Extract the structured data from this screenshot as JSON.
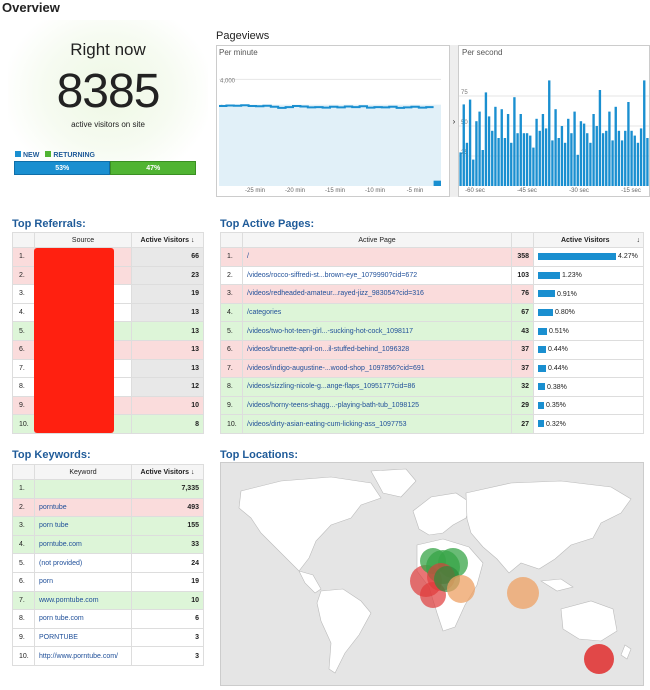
{
  "header": {
    "title": "Overview"
  },
  "right_now": {
    "title": "Right now",
    "count": "8385",
    "subtitle": "active visitors on site",
    "legend_new": "NEW",
    "legend_returning": "RETURNING",
    "new_pct": "53%",
    "returning_pct": "47%",
    "new_fraction": 0.53,
    "colors": {
      "new": "#1a8fd0",
      "returning": "#50b432"
    }
  },
  "pageviews": {
    "title": "Pageviews",
    "per_minute_label": "Per minute",
    "per_second_label": "Per second",
    "minute_y_ticks": [
      "4,000",
      "3,000",
      "2,000",
      "1,000"
    ],
    "minute_x_ticks": [
      "-25 min",
      "-20 min",
      "-15 min",
      "-10 min",
      "-5 min"
    ],
    "second_y_ticks": [
      "75",
      "50",
      "25"
    ],
    "second_x_ticks": [
      "-60 sec",
      "-45 sec",
      "-30 sec",
      "-15 sec"
    ],
    "collapse_icon": "chevron-right-icon",
    "minute_values": [
      3000,
      3020,
      3010,
      3030,
      3000,
      2990,
      3010,
      2970,
      2930,
      2960,
      3000,
      2980,
      2950,
      2960,
      2940,
      2970,
      2950,
      2980,
      2960,
      2990,
      2940,
      2960,
      2950,
      2970,
      2930,
      2950,
      2970,
      2940,
      2960,
      200
    ],
    "second_values": [
      28,
      68,
      36,
      72,
      22,
      54,
      62,
      30,
      78,
      58,
      46,
      66,
      40,
      64,
      40,
      60,
      36,
      74,
      44,
      60,
      44,
      44,
      42,
      32,
      56,
      46,
      60,
      48,
      88,
      38,
      64,
      40,
      50,
      36,
      56,
      44,
      62,
      26,
      54,
      52,
      44,
      36,
      60,
      50,
      80,
      44,
      46,
      62,
      38,
      66,
      46,
      38,
      46,
      70,
      46,
      42,
      36,
      48,
      88,
      40
    ]
  },
  "referrals": {
    "title": "Top Referrals:",
    "col_source": "Source",
    "col_visitors": "Active Visitors",
    "rows": [
      {
        "idx": "1.",
        "value": "66",
        "style": "r"
      },
      {
        "idx": "2.",
        "value": "23",
        "style": "r"
      },
      {
        "idx": "3.",
        "value": "19",
        "style": "w"
      },
      {
        "idx": "4.",
        "value": "13",
        "style": "w"
      },
      {
        "idx": "5.",
        "value": "13",
        "style": "g"
      },
      {
        "idx": "6.",
        "value": "13",
        "style": "r"
      },
      {
        "idx": "7.",
        "value": "13",
        "style": "w"
      },
      {
        "idx": "8.",
        "value": "12",
        "style": "w"
      },
      {
        "idx": "9.",
        "value": "10",
        "style": "r"
      },
      {
        "idx": "10.",
        "value": "8",
        "style": "g"
      }
    ]
  },
  "pages": {
    "title": "Top Active Pages:",
    "col_page": "Active Page",
    "col_visitors": "Active Visitors",
    "rows": [
      {
        "idx": "1.",
        "page": "/",
        "value": "358",
        "pct": "4.27%",
        "share": 4.27,
        "style": "r"
      },
      {
        "idx": "2.",
        "page": "/videos/rocco-siffredi-st...brown-eye_1079990?cid=672",
        "value": "103",
        "pct": "1.23%",
        "share": 1.23,
        "style": "w"
      },
      {
        "idx": "3.",
        "page": "/videos/redheaded-amateur...rayed-jizz_983054?cid=316",
        "value": "76",
        "pct": "0.91%",
        "share": 0.91,
        "style": "r"
      },
      {
        "idx": "4.",
        "page": "/categories",
        "value": "67",
        "pct": "0.80%",
        "share": 0.8,
        "style": "g"
      },
      {
        "idx": "5.",
        "page": "/videos/two-hot-teen-girl...-sucking-hot-cock_1098117",
        "value": "43",
        "pct": "0.51%",
        "share": 0.51,
        "style": "g"
      },
      {
        "idx": "6.",
        "page": "/videos/brunette-april-on...il-stuffed-behind_1096328",
        "value": "37",
        "pct": "0.44%",
        "share": 0.44,
        "style": "r"
      },
      {
        "idx": "7.",
        "page": "/videos/indigo-augustine-...wood-shop_1097856?cid=691",
        "value": "37",
        "pct": "0.44%",
        "share": 0.44,
        "style": "r"
      },
      {
        "idx": "8.",
        "page": "/videos/sizzling-nicole-g...ange-flaps_1095177?cid=86",
        "value": "32",
        "pct": "0.38%",
        "share": 0.38,
        "style": "g"
      },
      {
        "idx": "9.",
        "page": "/videos/horny-teens-shagg...-playing-bath-tub_1098125",
        "value": "29",
        "pct": "0.35%",
        "share": 0.35,
        "style": "g"
      },
      {
        "idx": "10.",
        "page": "/videos/dirty-asian-eating-cum-licking-ass_1097753",
        "value": "27",
        "pct": "0.32%",
        "share": 0.32,
        "style": "g"
      }
    ]
  },
  "keywords": {
    "title": "Top Keywords:",
    "col_keyword": "Keyword",
    "col_visitors": "Active Visitors",
    "rows": [
      {
        "idx": "1.",
        "keyword": "",
        "value": "7,335",
        "style": "g"
      },
      {
        "idx": "2.",
        "keyword": "porntube",
        "value": "493",
        "style": "r"
      },
      {
        "idx": "3.",
        "keyword": "porn tube",
        "value": "155",
        "style": "g"
      },
      {
        "idx": "4.",
        "keyword": "porntube.com",
        "value": "33",
        "style": "g"
      },
      {
        "idx": "5.",
        "keyword": "(not provided)",
        "value": "24",
        "style": "w"
      },
      {
        "idx": "6.",
        "keyword": "porn",
        "value": "19",
        "style": "w"
      },
      {
        "idx": "7.",
        "keyword": "www.porntube.com",
        "value": "10",
        "style": "g"
      },
      {
        "idx": "8.",
        "keyword": "porn tube.com",
        "value": "6",
        "style": "w"
      },
      {
        "idx": "9.",
        "keyword": "PORNTUBE",
        "value": "3",
        "style": "w"
      },
      {
        "idx": "10.",
        "keyword": "http://www.porntube.com/",
        "value": "3",
        "style": "w"
      }
    ]
  },
  "locations": {
    "title": "Top Locations:",
    "sort_icon": "sort-down-icon"
  }
}
